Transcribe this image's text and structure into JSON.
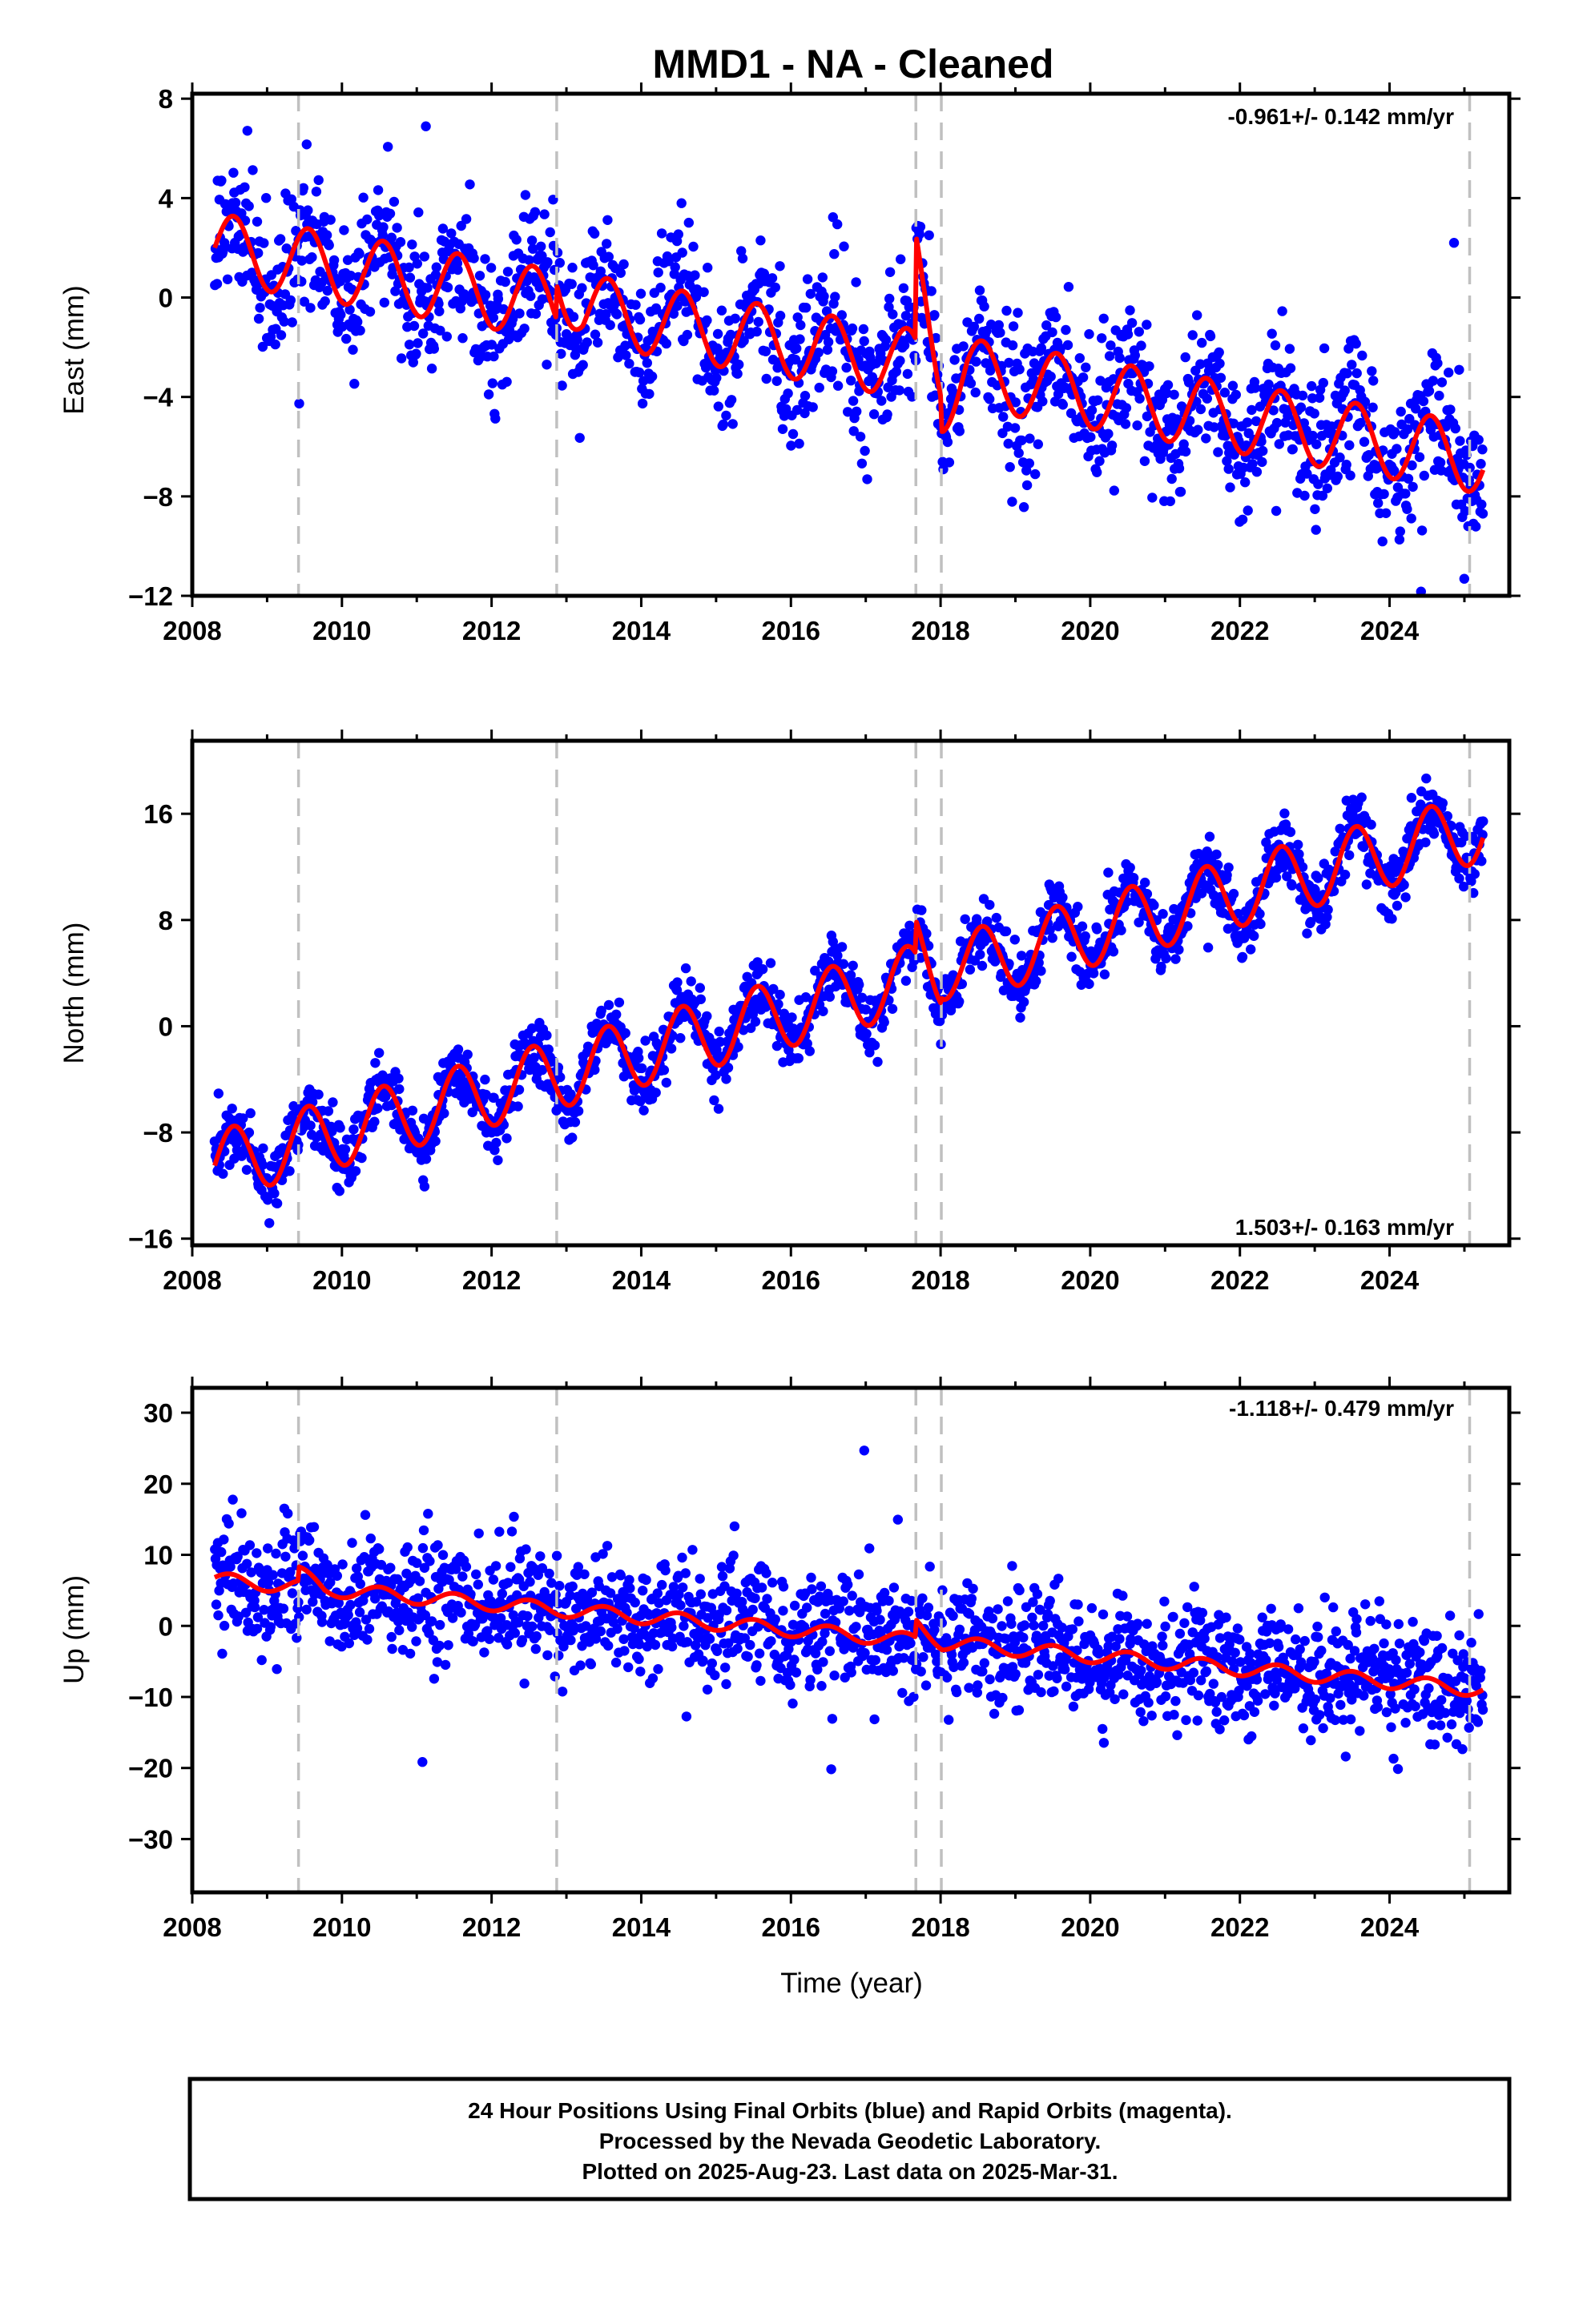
{
  "title": "MMD1  - NA - Cleaned",
  "footer": {
    "lines": [
      "24 Hour Positions Using Final Orbits (blue) and Rapid Orbits (magenta).",
      "Processed by the Nevada Geodetic Laboratory.",
      "Plotted on 2025-Aug-23. Last data on 2025-Mar-31."
    ]
  },
  "colors": {
    "final_orbits": "#0000ff",
    "model": "#ff0000",
    "event_lines": "#c0c0c0",
    "frame": "#000000"
  },
  "chart_data": [
    {
      "type": "scatter",
      "panel": "east",
      "ylabel": "East (mm)",
      "xlabel": "",
      "xlim": [
        2008,
        2025.6
      ],
      "ylim": [
        -12,
        8.2
      ],
      "x_ticks": [
        2008,
        2010,
        2012,
        2014,
        2016,
        2018,
        2020,
        2022,
        2024
      ],
      "y_ticks": [
        -12,
        -8,
        -4,
        0,
        4,
        8
      ],
      "rate_label": "-0.961+/- 0.142 mm/yr",
      "rate_position": "top-right",
      "event_lines": [
        2009.42,
        2012.87,
        2017.67,
        2018.01,
        2025.07
      ],
      "data_range": [
        2008.3,
        2025.25
      ],
      "model": {
        "trend_start": 2.0,
        "trend_end": -6.5,
        "annual_amplitude": 1.4,
        "peak_phase": 0.55,
        "steps": [
          {
            "t": 2012.87,
            "dy": 1.4
          },
          {
            "t": 2017.67,
            "dy": 4.2
          },
          {
            "t": 2018.01,
            "dy": -1.2
          }
        ]
      },
      "scatter_std": 1.4
    },
    {
      "type": "scatter",
      "panel": "north",
      "ylabel": "North (mm)",
      "xlabel": "",
      "xlim": [
        2008,
        2025.6
      ],
      "ylim": [
        -16.5,
        21.5
      ],
      "x_ticks": [
        2008,
        2010,
        2012,
        2014,
        2016,
        2018,
        2020,
        2022,
        2024
      ],
      "y_ticks": [
        -16,
        -8,
        0,
        8,
        16
      ],
      "rate_label": "1.503+/- 0.163 mm/yr",
      "rate_position": "bottom-right",
      "event_lines": [
        2009.42,
        2012.87,
        2017.67,
        2018.01,
        2025.07
      ],
      "data_range": [
        2008.3,
        2025.25
      ],
      "model": {
        "trend_start": -10.5,
        "trend_end": 15.0,
        "annual_amplitude": 2.6,
        "peak_phase": 0.55,
        "steps": [
          {
            "t": 2017.67,
            "dy": 2.5
          },
          {
            "t": 2018.01,
            "dy": 0.5
          }
        ]
      },
      "scatter_std": 1.2
    },
    {
      "type": "scatter",
      "panel": "up",
      "ylabel": "Up (mm)",
      "xlabel": "Time (year)",
      "xlim": [
        2008,
        2025.6
      ],
      "ylim": [
        -37.5,
        33.5
      ],
      "x_ticks": [
        2008,
        2010,
        2012,
        2014,
        2016,
        2018,
        2020,
        2022,
        2024
      ],
      "y_ticks": [
        -30,
        -20,
        -10,
        0,
        10,
        20,
        30
      ],
      "rate_label": "-1.118+/- 0.479 mm/yr",
      "rate_position": "top-right",
      "event_lines": [
        2009.42,
        2012.87,
        2017.67,
        2018.01,
        2025.07
      ],
      "data_range": [
        2008.3,
        2025.25
      ],
      "model": {
        "trend_start": 6.5,
        "trend_end": -9.0,
        "annual_amplitude": 1.0,
        "peak_phase": 0.5,
        "steps": [
          {
            "t": 2009.42,
            "dy": 2.0
          },
          {
            "t": 2017.67,
            "dy": 2.5
          }
        ]
      },
      "scatter_std": 4.2
    }
  ]
}
